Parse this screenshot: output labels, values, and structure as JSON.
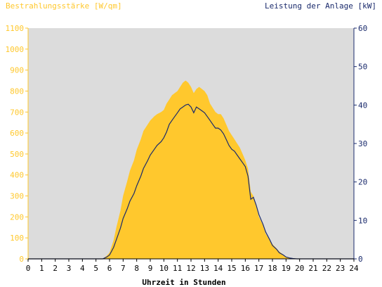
{
  "colors": {
    "plot_bg": "#dcdcdc",
    "irradiance": "#ffc82d",
    "power_line": "#1a2a6c",
    "left_axis": "#ffc82d",
    "right_axis": "#1a2a6c",
    "x_axis": "#000000"
  },
  "chart_data": {
    "type": "area",
    "title_left": "Bestrahlungsstärke [W/qm]",
    "title_right": "Leistung der Anlage [kW]",
    "xlabel": "Uhrzeit in Stunden",
    "x_ticks": [
      "0",
      "1",
      "2",
      "3",
      "4",
      "5",
      "6",
      "7",
      "8",
      "9",
      "10",
      "11",
      "12",
      "13",
      "14",
      "15",
      "16",
      "17",
      "18",
      "19",
      "20",
      "21",
      "22",
      "23",
      "24"
    ],
    "y_left_ticks": [
      "0",
      "100",
      "200",
      "300",
      "400",
      "500",
      "600",
      "700",
      "800",
      "900",
      "1000",
      "1100"
    ],
    "y_right_ticks": [
      "0",
      "10",
      "20",
      "30",
      "40",
      "50",
      "60"
    ],
    "xlim": [
      0,
      24
    ],
    "ylim_left": [
      0,
      1100
    ],
    "ylim_right": [
      0,
      60
    ],
    "series": [
      {
        "name": "Bestrahlungsstärke [W/qm]",
        "axis": "left",
        "render": "area",
        "x": [
          0,
          5.5,
          5.8,
          6,
          6.3,
          6.5,
          6.8,
          7,
          7.3,
          7.5,
          7.8,
          8,
          8.3,
          8.5,
          8.8,
          9,
          9.3,
          9.5,
          9.8,
          10,
          10.2,
          10.4,
          10.6,
          10.8,
          11,
          11.2,
          11.4,
          11.6,
          11.8,
          12,
          12.2,
          12.4,
          12.6,
          12.8,
          13,
          13.2,
          13.4,
          13.6,
          13.8,
          14,
          14.2,
          14.4,
          14.6,
          14.8,
          15,
          15.2,
          15.4,
          15.6,
          15.8,
          16,
          16.2,
          16.4,
          16.6,
          16.8,
          17,
          17.3,
          17.5,
          17.8,
          18,
          18.3,
          18.5,
          18.8,
          19,
          19.3,
          19.5,
          19.8,
          20,
          24
        ],
        "values": [
          0,
          0,
          15,
          30,
          90,
          150,
          230,
          300,
          370,
          420,
          470,
          520,
          570,
          610,
          640,
          660,
          680,
          690,
          700,
          710,
          740,
          760,
          780,
          790,
          800,
          820,
          840,
          850,
          840,
          820,
          790,
          810,
          820,
          810,
          800,
          780,
          740,
          720,
          700,
          690,
          690,
          670,
          640,
          610,
          590,
          570,
          550,
          530,
          500,
          470,
          430,
          320,
          300,
          250,
          200,
          160,
          120,
          90,
          70,
          50,
          35,
          20,
          10,
          5,
          2,
          1,
          0,
          0
        ]
      },
      {
        "name": "Leistung der Anlage [kW]",
        "axis": "right",
        "render": "line",
        "x": [
          0,
          5.5,
          5.8,
          6,
          6.3,
          6.5,
          6.8,
          7,
          7.3,
          7.5,
          7.8,
          8,
          8.3,
          8.5,
          8.8,
          9,
          9.3,
          9.5,
          9.8,
          10,
          10.2,
          10.4,
          10.6,
          10.8,
          11,
          11.2,
          11.4,
          11.6,
          11.8,
          12,
          12.2,
          12.4,
          12.6,
          12.8,
          13,
          13.2,
          13.4,
          13.6,
          13.8,
          14,
          14.2,
          14.4,
          14.6,
          14.8,
          15,
          15.2,
          15.4,
          15.6,
          15.8,
          16,
          16.2,
          16.4,
          16.6,
          16.8,
          17,
          17.3,
          17.5,
          17.8,
          18,
          18.3,
          18.5,
          18.8,
          19,
          19.3,
          19.5,
          19.8,
          20,
          24
        ],
        "values": [
          0,
          0,
          0.5,
          1,
          3,
          5,
          8,
          10.5,
          13,
          15,
          17,
          19,
          21.5,
          23.5,
          25.5,
          27,
          28.5,
          29.5,
          30.5,
          31.5,
          33,
          35,
          36,
          37,
          38,
          39,
          39.5,
          40,
          40.2,
          39.5,
          38,
          39.5,
          39,
          38.5,
          38,
          37,
          36,
          35,
          34,
          34,
          33.5,
          32.5,
          31,
          29.5,
          28.5,
          28,
          27,
          26,
          25,
          24,
          21.5,
          15.5,
          16,
          14,
          11.5,
          9,
          7,
          5,
          3.5,
          2.5,
          1.6,
          1,
          0.5,
          0.2,
          0.1,
          0,
          0,
          0
        ]
      }
    ]
  }
}
